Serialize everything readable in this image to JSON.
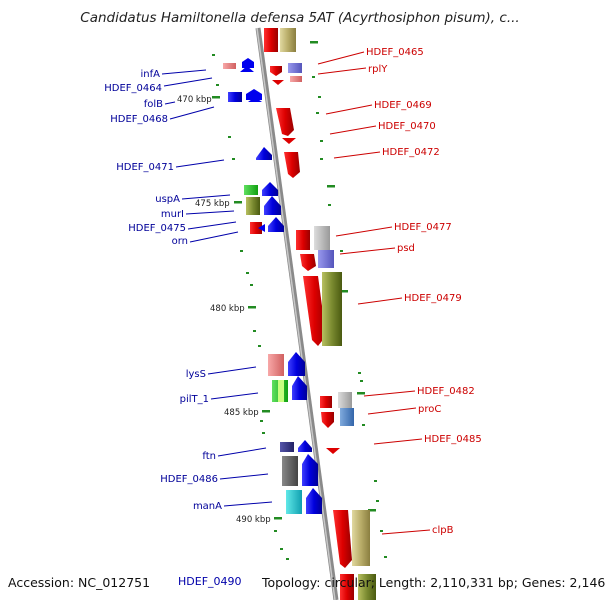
{
  "title": "Candidatus Hamiltonella defensa 5AT (Acyrthosiphon pisum), c...",
  "accession": "Accession: NC_012751",
  "topology": "Topology: circular; Length: 2,110,331 bp; Genes: 2,146",
  "bottom_label": "HDEF_0490",
  "scale_labels": [
    "470 kbp",
    "475 kbp",
    "480 kbp",
    "485 kbp",
    "490 kbp"
  ],
  "genes_right": [
    "HDEF_0465",
    "rplY",
    "HDEF_0469",
    "HDEF_0470",
    "HDEF_0472",
    "HDEF_0477",
    "psd",
    "HDEF_0479",
    "HDEF_0482",
    "proC",
    "HDEF_0485",
    "clpB"
  ],
  "genes_left": [
    "infA",
    "HDEF_0464",
    "folB",
    "HDEF_0468",
    "HDEF_0471",
    "uspA",
    "murI",
    "HDEF_0475",
    "orn",
    "lysS",
    "pilT_1",
    "ftn",
    "HDEF_0486",
    "manA"
  ],
  "colors": {
    "backbone": "#999999",
    "forward": "#0000ee",
    "reverse": "#ee0000",
    "tick": "#228b22",
    "leader_right": "#cc0000",
    "leader_left": "#0000aa"
  }
}
